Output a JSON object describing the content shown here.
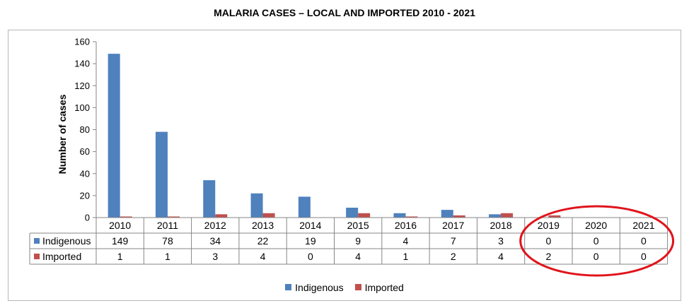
{
  "chart_data": {
    "type": "bar",
    "title": "MALARIA CASES – LOCAL AND IMPORTED 2010 - 2021",
    "ylabel": "Number of cases",
    "xlabel": "",
    "ylim": [
      0,
      160
    ],
    "yticks": [
      "0",
      "20",
      "40",
      "60",
      "80",
      "100",
      "120",
      "140",
      "160"
    ],
    "categories": [
      "2010",
      "2011",
      "2012",
      "2013",
      "2014",
      "2015",
      "2016",
      "2017",
      "2018",
      "2019",
      "2020",
      "2021"
    ],
    "series": [
      {
        "name": "Indigenous",
        "color": "#4f81bd",
        "values": [
          149,
          78,
          34,
          22,
          19,
          9,
          4,
          7,
          3,
          0,
          0,
          0
        ]
      },
      {
        "name": "Imported",
        "color": "#c0504d",
        "values": [
          1,
          1,
          3,
          4,
          0,
          4,
          1,
          2,
          4,
          2,
          0,
          0
        ]
      }
    ],
    "data_table": true,
    "legend": "bottom",
    "annotation": {
      "shape": "ellipse",
      "color": "#e0141b",
      "covers": [
        "2019",
        "2020",
        "2021"
      ]
    }
  }
}
